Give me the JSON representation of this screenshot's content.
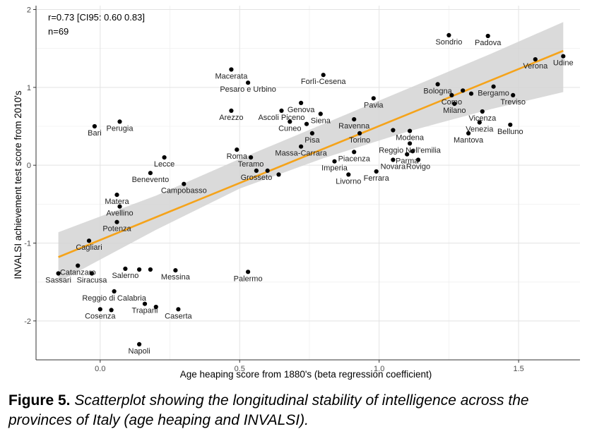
{
  "chart_data": {
    "type": "scatter",
    "xlabel": "Age heaping score from 1880's (beta regression coefficient)",
    "ylabel": "INVALSI achievement test score from 2010's",
    "xlim": [
      -0.23,
      1.72
    ],
    "ylim": [
      -2.5,
      2.05
    ],
    "x_ticks": [
      0.0,
      0.5,
      1.0,
      1.5
    ],
    "x_tick_labels": [
      "0.0",
      "0.5",
      "1.0",
      "1.5"
    ],
    "y_ticks": [
      -2,
      -1,
      0,
      1,
      2
    ],
    "y_tick_labels": [
      "-2",
      "-1",
      "0",
      "1",
      "2"
    ],
    "grid": true,
    "annotations": [
      "r=0.73 [CI95: 0.60 0.83]",
      "n=69"
    ],
    "regression_line": {
      "x": [
        -0.15,
        1.66
      ],
      "y": [
        -1.18,
        1.47
      ],
      "color": "#f5a31a"
    },
    "confidence_band": {
      "x": [
        -0.15,
        0.2,
        0.5,
        0.8,
        1.1,
        1.4,
        1.66
      ],
      "lower": [
        -1.5,
        -0.83,
        -0.3,
        0.09,
        0.43,
        0.72,
        0.94
      ],
      "upper": [
        -0.86,
        -0.39,
        0.08,
        0.53,
        0.98,
        1.43,
        1.84
      ],
      "color": "#d3d3d3"
    },
    "points": [
      {
        "label": "Sondrio",
        "x": 1.25,
        "y": 1.67
      },
      {
        "label": "Padova",
        "x": 1.39,
        "y": 1.66
      },
      {
        "label": "Udine",
        "x": 1.66,
        "y": 1.4
      },
      {
        "label": "Verona",
        "x": 1.56,
        "y": 1.36
      },
      {
        "label": "Macerata",
        "x": 0.47,
        "y": 1.23
      },
      {
        "label": "Forlì-Cesena",
        "x": 0.8,
        "y": 1.16
      },
      {
        "label": "Pesaro e Urbino",
        "x": 0.53,
        "y": 1.06
      },
      {
        "label": "Bologna",
        "x": 1.21,
        "y": 1.04
      },
      {
        "label": "Bergamo",
        "x": 1.41,
        "y": 1.01
      },
      {
        "label": "Como",
        "x": 1.26,
        "y": 0.9
      },
      {
        "label": "Treviso",
        "x": 1.48,
        "y": 0.9
      },
      {
        "label": "Pavia",
        "x": 0.98,
        "y": 0.86
      },
      {
        "label": "Genova",
        "x": 0.72,
        "y": 0.8
      },
      {
        "label": "Milano",
        "x": 1.27,
        "y": 0.79
      },
      {
        "label": "Arezzo",
        "x": 0.47,
        "y": 0.7
      },
      {
        "label": "Ascoli Piceno",
        "x": 0.65,
        "y": 0.7
      },
      {
        "label": "Vicenza",
        "x": 1.37,
        "y": 0.69
      },
      {
        "label": "Siena",
        "x": 0.79,
        "y": 0.66
      },
      {
        "label": "Ravenna",
        "x": 0.91,
        "y": 0.59
      },
      {
        "label": "Bari",
        "x": -0.02,
        "y": 0.5
      },
      {
        "label": "Perugia",
        "x": 0.07,
        "y": 0.56
      },
      {
        "label": "Venezia",
        "x": 1.36,
        "y": 0.55
      },
      {
        "label": "Belluno",
        "x": 1.47,
        "y": 0.52
      },
      {
        "label": "Cuneo",
        "x": 0.68,
        "y": 0.56
      },
      {
        "label": "Modena",
        "x": 1.11,
        "y": 0.44
      },
      {
        "label": "Mantova",
        "x": 1.32,
        "y": 0.41
      },
      {
        "label": "Pisa",
        "x": 0.76,
        "y": 0.41
      },
      {
        "label": "Torino",
        "x": 0.93,
        "y": 0.41
      },
      {
        "label": "Reggio Nell'emilia",
        "x": 1.11,
        "y": 0.28
      },
      {
        "label": "Massa-Carrara",
        "x": 0.72,
        "y": 0.24
      },
      {
        "label": "Roma",
        "x": 0.49,
        "y": 0.2
      },
      {
        "label": "Piacenza",
        "x": 0.91,
        "y": 0.17
      },
      {
        "label": "Parma",
        "x": 1.1,
        "y": 0.14
      },
      {
        "label": "Teramo",
        "x": 0.54,
        "y": 0.1
      },
      {
        "label": "Lecce",
        "x": 0.23,
        "y": 0.1
      },
      {
        "label": "Novara",
        "x": 1.05,
        "y": 0.07
      },
      {
        "label": "Rovigo",
        "x": 1.14,
        "y": 0.07
      },
      {
        "label": "Imperia",
        "x": 0.84,
        "y": 0.05
      },
      {
        "label": "Grosseto",
        "x": 0.56,
        "y": -0.07
      },
      {
        "label": "Benevento",
        "x": 0.18,
        "y": -0.1
      },
      {
        "label": "Ferrara",
        "x": 0.99,
        "y": -0.08
      },
      {
        "label": "Livorno",
        "x": 0.89,
        "y": -0.12
      },
      {
        "label": "Campobasso",
        "x": 0.3,
        "y": -0.24
      },
      {
        "label": "Matera",
        "x": 0.06,
        "y": -0.38
      },
      {
        "label": "Avellino",
        "x": 0.07,
        "y": -0.53
      },
      {
        "label": "Potenza",
        "x": 0.06,
        "y": -0.73
      },
      {
        "label": "Cagliari",
        "x": -0.04,
        "y": -0.97
      },
      {
        "label": "Catanzaro",
        "x": -0.08,
        "y": -1.29
      },
      {
        "label": "Salerno",
        "x": 0.09,
        "y": -1.33
      },
      {
        "label": "Messina",
        "x": 0.27,
        "y": -1.35
      },
      {
        "label": "Palermo",
        "x": 0.53,
        "y": -1.37
      },
      {
        "label": "Sassari",
        "x": -0.15,
        "y": -1.39
      },
      {
        "label": "Siracusa",
        "x": -0.03,
        "y": -1.39
      },
      {
        "label": "Reggio di Calabria",
        "x": 0.05,
        "y": -1.62
      },
      {
        "label": "Trapani",
        "x": 0.16,
        "y": -1.78
      },
      {
        "label": "Cosenza",
        "x": 0.0,
        "y": -1.85
      },
      {
        "label": "Caserta",
        "x": 0.28,
        "y": -1.85
      },
      {
        "label": "Napoli",
        "x": 0.14,
        "y": -2.3
      },
      {
        "label": "",
        "x": 0.6,
        "y": -0.07
      },
      {
        "label": "",
        "x": 0.64,
        "y": -0.12
      },
      {
        "label": "",
        "x": 0.74,
        "y": 0.53
      },
      {
        "label": "",
        "x": 1.3,
        "y": 0.96
      },
      {
        "label": "",
        "x": 1.33,
        "y": 0.92
      },
      {
        "label": "",
        "x": 1.12,
        "y": 0.18
      },
      {
        "label": "",
        "x": 1.05,
        "y": 0.45
      },
      {
        "label": "",
        "x": 0.14,
        "y": -1.34
      },
      {
        "label": "",
        "x": 0.18,
        "y": -1.34
      },
      {
        "label": "",
        "x": 0.2,
        "y": -1.82
      },
      {
        "label": "",
        "x": 0.04,
        "y": -1.86
      }
    ]
  },
  "caption": {
    "label": "Figure 5.",
    "text": "Scatterplot showing the longitudinal stability of intelligence across the provinces of Italy (age heaping and INVALSI)."
  }
}
